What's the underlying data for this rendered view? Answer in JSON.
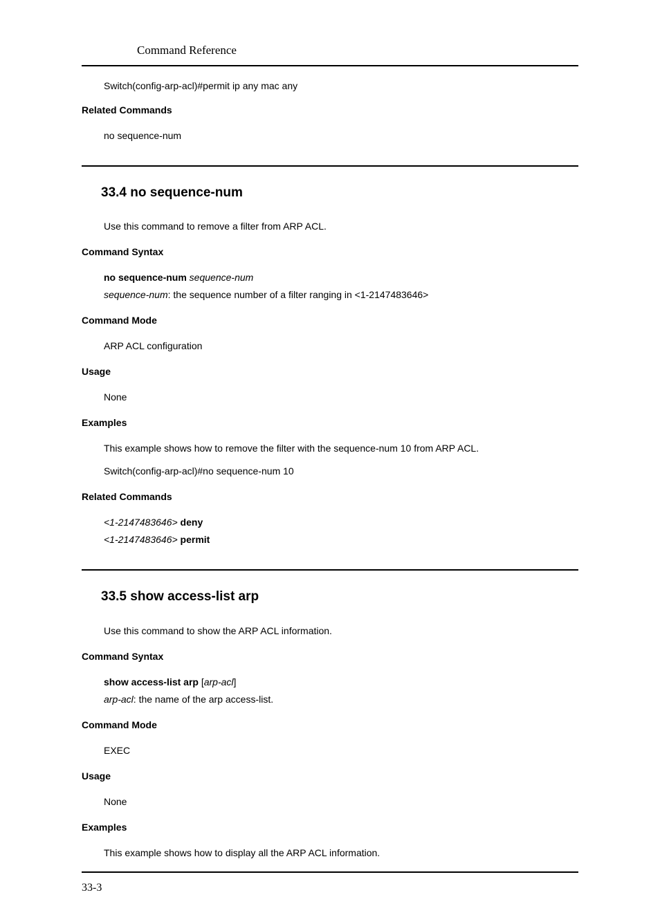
{
  "header": {
    "title": "Command Reference"
  },
  "preamble": {
    "code_line": "Switch(config-arp-acl)#permit ip any mac any",
    "related_heading": "Related Commands",
    "related_item": "no sequence-num"
  },
  "sections": [
    {
      "number": "33.4",
      "title": "no sequence-num",
      "intro": "Use this command to remove a filter from ARP ACL.",
      "syntax": {
        "heading": "Command Syntax",
        "cmd_bold": "no sequence-num",
        "cmd_italic": " sequence-num",
        "param_italic": "sequence-num",
        "param_desc": ": the sequence number of a filter ranging in <1-2147483646>"
      },
      "mode": {
        "heading": "Command Mode",
        "value": "ARP ACL configuration"
      },
      "usage": {
        "heading": "Usage",
        "value": "None"
      },
      "examples": {
        "heading": "Examples",
        "lines": [
          "This example shows how to remove the filter with the sequence-num 10 from ARP ACL.",
          "Switch(config-arp-acl)#no sequence-num 10"
        ]
      },
      "related": {
        "heading": "Related Commands",
        "items": [
          {
            "range": "<1-2147483646>",
            "cmd": " deny"
          },
          {
            "range": "<1-2147483646>",
            "cmd": " permit"
          }
        ]
      }
    },
    {
      "number": "33.5",
      "title": "show access-list arp",
      "intro": "Use this command to show the ARP ACL information.",
      "syntax": {
        "heading": "Command Syntax",
        "cmd_bold": "show access-list arp",
        "bracket_open": " [",
        "cmd_italic": "arp-acl",
        "bracket_close": "]",
        "param_italic": "arp-acl",
        "param_desc": ": the name of the arp access-list."
      },
      "mode": {
        "heading": "Command Mode",
        "value": "EXEC"
      },
      "usage": {
        "heading": "Usage",
        "value": "None"
      },
      "examples": {
        "heading": "Examples",
        "lines": [
          "This example shows how to display all the ARP ACL information."
        ]
      }
    }
  ],
  "footer": {
    "page": "33-3"
  }
}
